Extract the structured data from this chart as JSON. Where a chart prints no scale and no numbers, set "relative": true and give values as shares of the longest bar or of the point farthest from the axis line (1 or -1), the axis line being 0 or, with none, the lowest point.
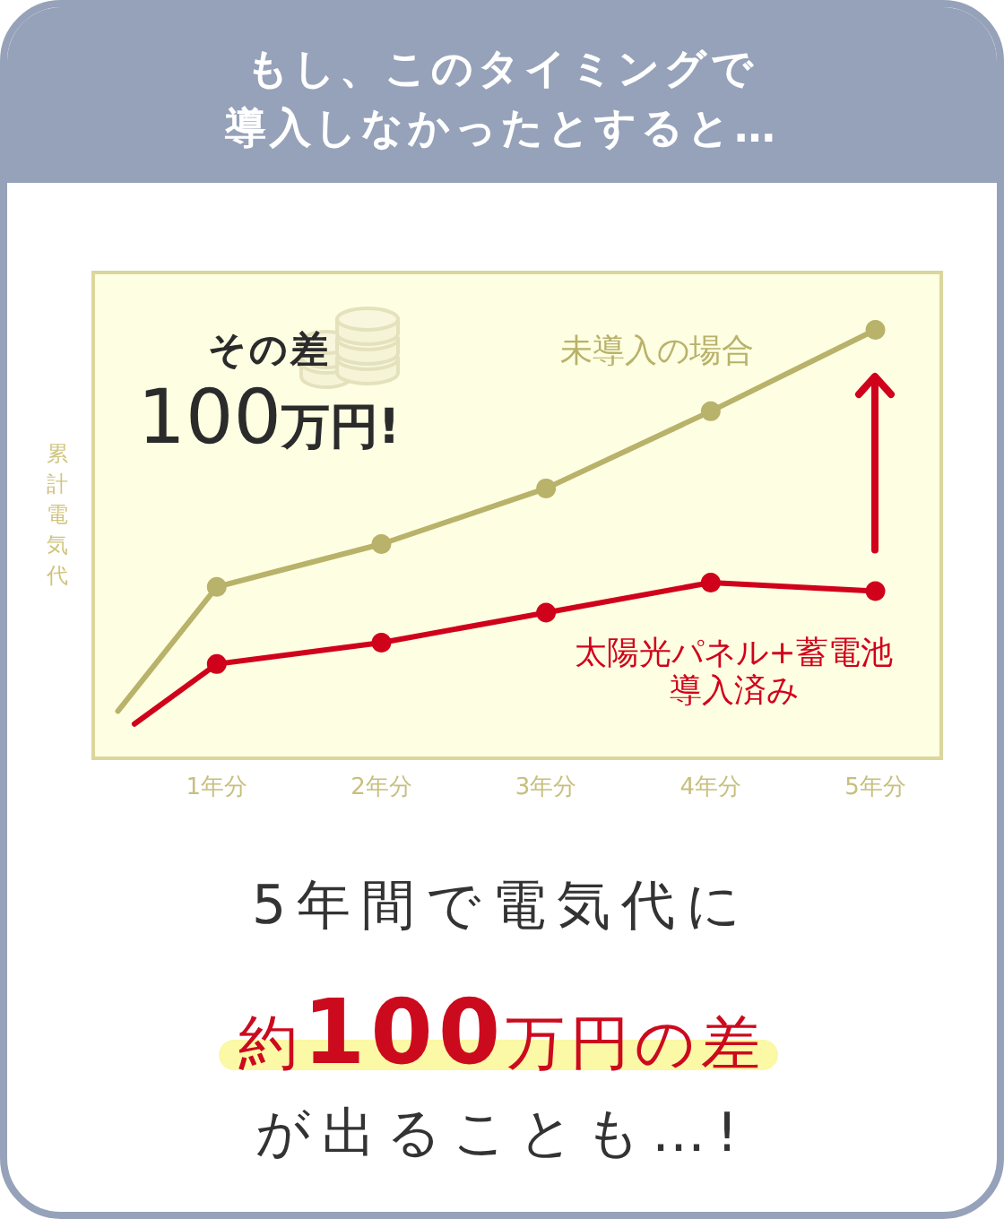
{
  "chart_data": {
    "type": "line",
    "title": "もし、このタイミングで",
    "subtitle": "導入しなかったとすると…",
    "ylabel": "累計電気代",
    "relative": true,
    "xlim": [
      0.25,
      5.4
    ],
    "xticks": [
      {
        "value": 1,
        "label": "1年分"
      },
      {
        "value": 2,
        "label": "2年分"
      },
      {
        "value": 3,
        "label": "3年分"
      },
      {
        "value": 4,
        "label": "4年分"
      },
      {
        "value": 5,
        "label": "5年分"
      }
    ],
    "marker": "circle",
    "series": [
      {
        "name": "未導入の場合",
        "color": "#b8b26a",
        "x": [
          0.4,
          1,
          2,
          3,
          4,
          5
        ],
        "values": [
          0.11,
          0.4,
          0.5,
          0.63,
          0.81,
          1
        ]
      },
      {
        "name": "太陽光パネル+蓄電池導入済み",
        "color": "#d0021b",
        "x": [
          0.5,
          1,
          2,
          3,
          4,
          5
        ],
        "values": [
          0.08,
          0.22,
          0.27,
          0.34,
          0.41,
          0.39
        ]
      }
    ],
    "annotations": [
      "その差\n100万円!",
      "5年間で電気代に",
      "約100万円の差",
      "が出ることも…!"
    ]
  }
}
